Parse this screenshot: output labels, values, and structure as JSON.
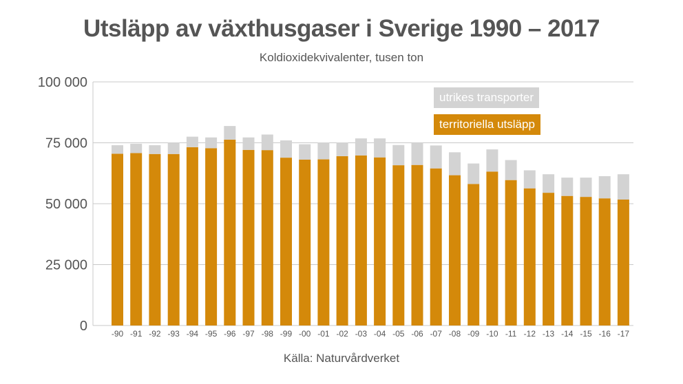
{
  "title": "Utsläpp av växthusgaser i Sverige 1990 – 2017",
  "subtitle": "Koldioxidekvivalenter, tusen ton",
  "source": "Källa: Naturvårdverket",
  "colors": {
    "territorial": "#d4890a",
    "international": "#d3d3d3",
    "grid": "#c8c8c8",
    "text": "#555555"
  },
  "chart_data": {
    "type": "bar",
    "stacked": true,
    "categories": [
      "-90",
      "-91",
      "-92",
      "-93",
      "-94",
      "-95",
      "-96",
      "-97",
      "-98",
      "-99",
      "-00",
      "-01",
      "-02",
      "-03",
      "-04",
      "-05",
      "-06",
      "-07",
      "-08",
      "-09",
      "-10",
      "-11",
      "-12",
      "-13",
      "-14",
      "-15",
      "-16",
      "-17"
    ],
    "series": [
      {
        "name": "territoriella utsläpp",
        "color": "#d4890a",
        "values": [
          70500,
          70800,
          70400,
          70400,
          73200,
          72800,
          76300,
          72100,
          72000,
          68900,
          68100,
          68200,
          69500,
          69800,
          69000,
          65800,
          65900,
          64500,
          61700,
          58100,
          63200,
          59700,
          56300,
          54500,
          53200,
          52800,
          52200,
          51700
        ]
      },
      {
        "name": "utrikes transporter",
        "color": "#d3d3d3",
        "values": [
          3500,
          3800,
          3600,
          4600,
          4300,
          4400,
          5600,
          5100,
          6400,
          7100,
          6300,
          6900,
          5600,
          7000,
          7800,
          8300,
          9300,
          9400,
          9400,
          8400,
          9100,
          8200,
          7400,
          7600,
          7500,
          7900,
          9100,
          10400
        ]
      }
    ],
    "ylim": [
      0,
      100000
    ],
    "yticks": [
      0,
      25000,
      50000,
      75000,
      100000
    ],
    "ytick_labels": [
      "0",
      "25 000",
      "50 000",
      "75 000",
      "100 000"
    ],
    "grid": true,
    "legend_position": "top-right",
    "legend": [
      "utrikes transporter",
      "territoriella utsläpp"
    ]
  }
}
